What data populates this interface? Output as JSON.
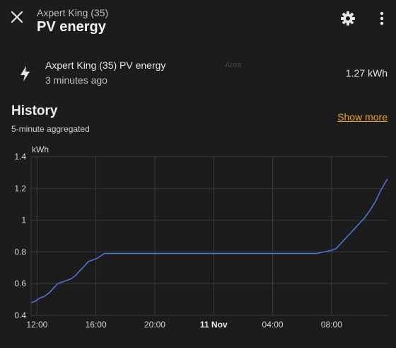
{
  "header": {
    "subtitle": "Axpert King (35)",
    "title": "PV energy",
    "icons": {
      "close": "close-icon",
      "settings": "gear-icon",
      "more": "dots-vertical-icon"
    }
  },
  "entity": {
    "name": "Axpert King (35) PV energy",
    "last_updated": "3 minutes ago",
    "value": "1.27 kWh",
    "icon": "lightning-bolt-icon",
    "ghost_label": "Area"
  },
  "history": {
    "title": "History",
    "subtitle": "5-minute aggregated",
    "show_more": "Show more"
  },
  "colors": {
    "background": "#1c1c1c",
    "accent": "#f0a02a",
    "series": "#4a74d8",
    "grid": "#3a3a3a"
  },
  "chart_data": {
    "type": "line",
    "ylabel": "kWh",
    "ylim": [
      0.4,
      1.4
    ],
    "yticks": [
      {
        "value": 0.4,
        "label": "0.4"
      },
      {
        "value": 0.6,
        "label": "0.6"
      },
      {
        "value": 0.8,
        "label": "0.8"
      },
      {
        "value": 1.0,
        "label": "1"
      },
      {
        "value": 1.2,
        "label": "1.2"
      },
      {
        "value": 1.4,
        "label": "1.4"
      }
    ],
    "xlim_hours": [
      11.6,
      35.8
    ],
    "xticks": [
      {
        "hour": 12,
        "label": "12:00",
        "bold": false
      },
      {
        "hour": 16,
        "label": "16:00",
        "bold": false
      },
      {
        "hour": 20,
        "label": "20:00",
        "bold": false
      },
      {
        "hour": 24,
        "label": "11 Nov",
        "bold": true
      },
      {
        "hour": 28,
        "label": "04:00",
        "bold": false
      },
      {
        "hour": 32,
        "label": "08:00",
        "bold": false
      }
    ],
    "grid": true,
    "series": [
      {
        "points": [
          [
            11.6,
            0.48
          ],
          [
            11.9,
            0.49
          ],
          [
            12.2,
            0.51
          ],
          [
            12.5,
            0.52
          ],
          [
            12.8,
            0.54
          ],
          [
            13.1,
            0.57
          ],
          [
            13.4,
            0.6
          ],
          [
            13.7,
            0.61
          ],
          [
            14.0,
            0.62
          ],
          [
            14.3,
            0.63
          ],
          [
            14.6,
            0.65
          ],
          [
            14.9,
            0.68
          ],
          [
            15.2,
            0.71
          ],
          [
            15.5,
            0.74
          ],
          [
            15.8,
            0.75
          ],
          [
            16.1,
            0.76
          ],
          [
            16.4,
            0.78
          ],
          [
            16.6,
            0.79
          ],
          [
            17.0,
            0.79
          ],
          [
            20.0,
            0.79
          ],
          [
            24.0,
            0.79
          ],
          [
            28.0,
            0.79
          ],
          [
            31.0,
            0.79
          ],
          [
            31.5,
            0.8
          ],
          [
            32.0,
            0.81
          ],
          [
            32.3,
            0.82
          ],
          [
            32.6,
            0.85
          ],
          [
            33.0,
            0.89
          ],
          [
            33.4,
            0.93
          ],
          [
            33.8,
            0.97
          ],
          [
            34.2,
            1.01
          ],
          [
            34.6,
            1.06
          ],
          [
            35.0,
            1.12
          ],
          [
            35.3,
            1.18
          ],
          [
            35.6,
            1.23
          ],
          [
            35.8,
            1.26
          ]
        ]
      }
    ]
  }
}
